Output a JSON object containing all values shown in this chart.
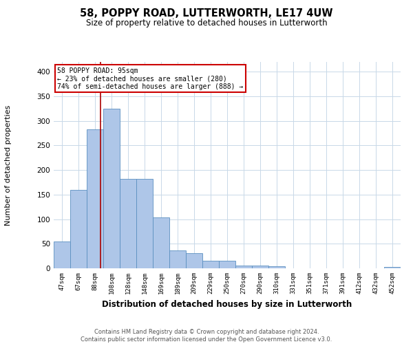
{
  "title": "58, POPPY ROAD, LUTTERWORTH, LE17 4UW",
  "subtitle": "Size of property relative to detached houses in Lutterworth",
  "xlabel": "Distribution of detached houses by size in Lutterworth",
  "ylabel": "Number of detached properties",
  "categories": [
    "47sqm",
    "67sqm",
    "88sqm",
    "108sqm",
    "128sqm",
    "148sqm",
    "169sqm",
    "189sqm",
    "209sqm",
    "229sqm",
    "250sqm",
    "270sqm",
    "290sqm",
    "310sqm",
    "331sqm",
    "351sqm",
    "371sqm",
    "391sqm",
    "412sqm",
    "432sqm",
    "452sqm"
  ],
  "values": [
    55,
    160,
    283,
    325,
    182,
    182,
    103,
    36,
    31,
    15,
    15,
    5,
    5,
    4,
    0,
    0,
    0,
    0,
    0,
    0,
    3
  ],
  "bar_color": "#aec6e8",
  "bar_edge_color": "#5a8fc0",
  "bar_edge_width": 0.6,
  "red_line_label": "58 POPPY ROAD: 95sqm",
  "annotation_line1": "← 23% of detached houses are smaller (280)",
  "annotation_line2": "74% of semi-detached houses are larger (888) →",
  "annotation_box_color": "#ffffff",
  "annotation_box_edge": "#cc0000",
  "grid_color": "#c8d8e8",
  "background_color": "#ffffff",
  "footer1": "Contains HM Land Registry data © Crown copyright and database right 2024.",
  "footer2": "Contains public sector information licensed under the Open Government Licence v3.0.",
  "ylim": [
    0,
    420
  ],
  "yticks": [
    0,
    50,
    100,
    150,
    200,
    250,
    300,
    350,
    400
  ]
}
